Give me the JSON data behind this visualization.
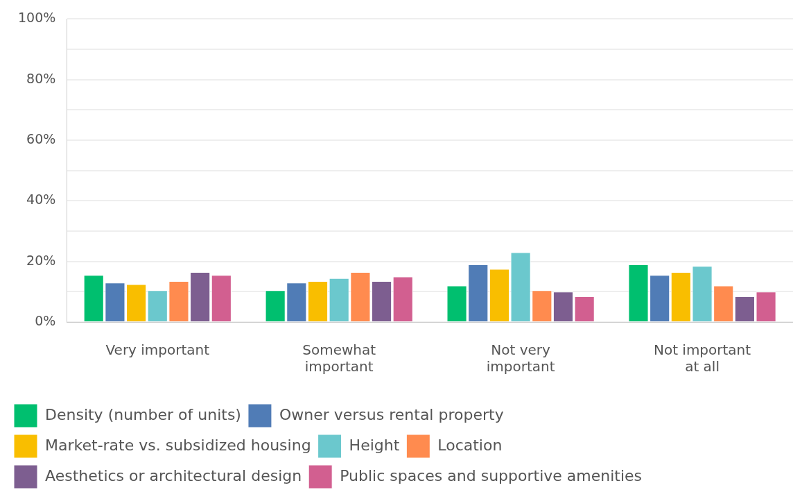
{
  "chart_data": {
    "type": "bar",
    "categories": [
      "Very important",
      "Somewhat important",
      "Not very important",
      "Not important at all"
    ],
    "series": [
      {
        "name": "Density (number of units)",
        "color": "#00bf6f",
        "values": [
          15.5,
          10.5,
          12,
          19
        ]
      },
      {
        "name": "Owner versus rental property",
        "color": "#507cb6",
        "values": [
          13,
          13,
          19,
          15.5
        ]
      },
      {
        "name": "Market-rate vs. subsidized housing",
        "color": "#f9be00",
        "values": [
          12.5,
          13.5,
          17.5,
          16.5
        ]
      },
      {
        "name": "Height",
        "color": "#6bc8cd",
        "values": [
          10.5,
          14.5,
          23,
          18.5
        ]
      },
      {
        "name": "Location",
        "color": "#ff8b4f",
        "values": [
          13.5,
          16.5,
          10.5,
          12
        ]
      },
      {
        "name": "Aesthetics or architectural design",
        "color": "#7d5e90",
        "values": [
          16.5,
          13.5,
          10,
          8.5
        ]
      },
      {
        "name": "Public spaces and supportive amenities",
        "color": "#d25f90",
        "values": [
          15.5,
          15,
          8.5,
          10
        ]
      }
    ],
    "ylim": [
      0,
      100
    ],
    "yticks": [
      {
        "value": 0,
        "label": "0%"
      },
      {
        "value": 10,
        "label": null
      },
      {
        "value": 20,
        "label": "20%"
      },
      {
        "value": 30,
        "label": null
      },
      {
        "value": 40,
        "label": "40%"
      },
      {
        "value": 50,
        "label": null
      },
      {
        "value": 60,
        "label": "60%"
      },
      {
        "value": 70,
        "label": null
      },
      {
        "value": 80,
        "label": "80%"
      },
      {
        "value": 90,
        "label": null
      },
      {
        "value": 100,
        "label": "100%"
      }
    ],
    "grid": "y",
    "legend": "bottom"
  }
}
